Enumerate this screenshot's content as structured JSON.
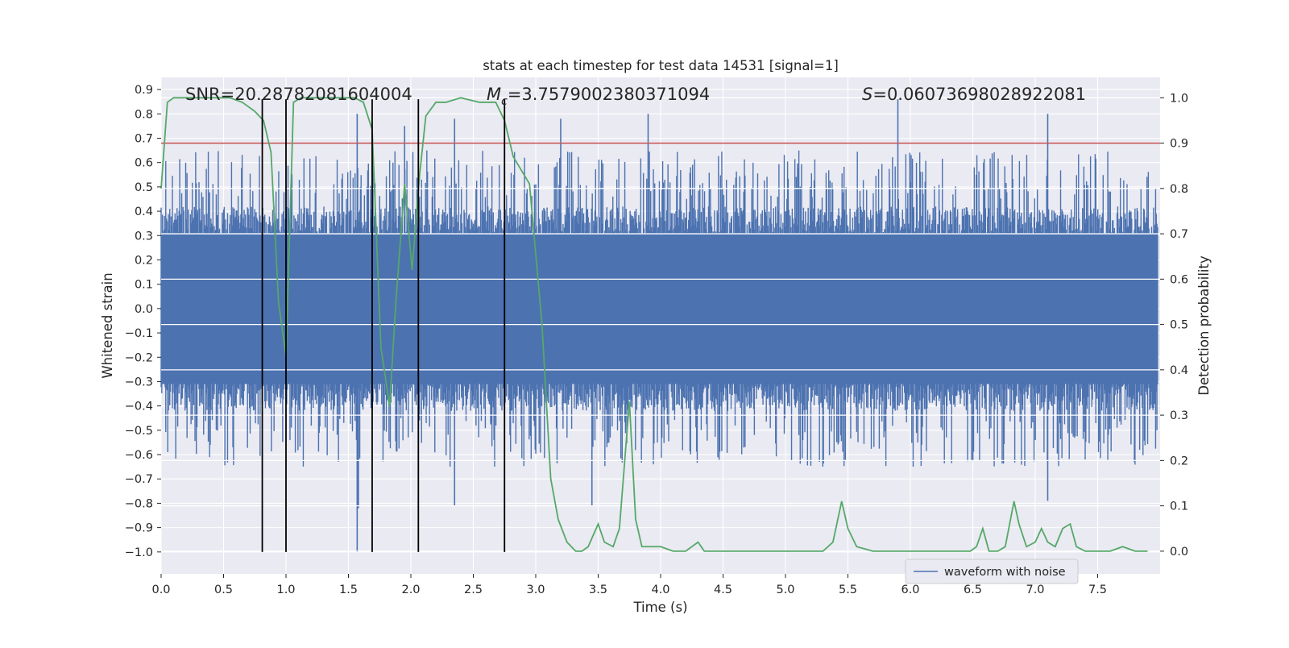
{
  "chart_data": {
    "type": "line",
    "title": "stats at each timestep for test data 14531 [signal=1]",
    "xlabel": "Time (s)",
    "ylabel": "Whitened strain",
    "ylabel_right": "Detection probability",
    "xlim": [
      0.0,
      8.0
    ],
    "ylim": [
      -1.09,
      0.95
    ],
    "ylim_right": [
      -0.05,
      1.045
    ],
    "x_ticks": [
      "0.0",
      "0.5",
      "1.0",
      "1.5",
      "2.0",
      "2.5",
      "3.0",
      "3.5",
      "4.0",
      "4.5",
      "5.0",
      "5.5",
      "6.0",
      "6.5",
      "7.0",
      "7.5"
    ],
    "y_ticks": [
      "0.9",
      "0.8",
      "0.7",
      "0.6",
      "0.5",
      "0.4",
      "0.3",
      "0.2",
      "0.1",
      "0.0",
      "−0.1",
      "−0.2",
      "−0.3",
      "−0.4",
      "−0.5",
      "−0.6",
      "−0.7",
      "−0.8",
      "−0.9",
      "−1.0"
    ],
    "y_ticks_right": [
      "1.0",
      "0.9",
      "0.8",
      "0.7",
      "0.6",
      "0.5",
      "0.4",
      "0.3",
      "0.2",
      "0.1",
      "0.0"
    ],
    "grid": true,
    "legend": {
      "placement": "lower-right",
      "entries": [
        "waveform with noise"
      ]
    },
    "annotations": {
      "snr": "SNR=20.28782081604004",
      "mc_symbol": "M",
      "mc_sub": "c",
      "mc_value": "=3.7579002380371094",
      "s_symbol": "S",
      "s_value": "=0.06073698028922081"
    },
    "threshold_line": {
      "y_right": 0.9,
      "color": "#c44e52"
    },
    "vertical_markers": {
      "x": [
        0.81,
        1.0,
        1.69,
        2.06,
        2.75
      ],
      "y_from": -1.0,
      "y_to": 0.86,
      "color": "#000000"
    },
    "series": [
      {
        "name": "waveform with noise",
        "axis": "left",
        "color": "#4c72b0",
        "description_envelope_typical": [
          -0.45,
          0.45
        ],
        "envelope_peaks_x": [
          1.57,
          1.95,
          2.35,
          3.2,
          3.9,
          5.9,
          7.1
        ],
        "envelope_peaks_y": [
          0.8,
          0.75,
          0.78,
          0.78,
          0.8,
          0.86,
          0.8
        ],
        "envelope_troughs_x": [
          1.57,
          1.58,
          2.35,
          3.45,
          7.1
        ],
        "envelope_troughs_y": [
          -1.0,
          -0.82,
          -0.81,
          -0.81,
          -0.79
        ]
      },
      {
        "name": "detection probability",
        "axis": "right",
        "color": "#55a868",
        "x": [
          0.0,
          0.05,
          0.1,
          0.2,
          0.4,
          0.55,
          0.65,
          0.75,
          0.82,
          0.88,
          0.94,
          1.0,
          1.06,
          1.12,
          1.2,
          1.4,
          1.55,
          1.62,
          1.69,
          1.76,
          1.83,
          1.88,
          1.95,
          2.01,
          2.07,
          2.12,
          2.2,
          2.28,
          2.4,
          2.55,
          2.68,
          2.75,
          2.82,
          2.95,
          3.05,
          3.12,
          3.18,
          3.25,
          3.32,
          3.37,
          3.42,
          3.5,
          3.55,
          3.62,
          3.67,
          3.75,
          3.8,
          3.85,
          3.9,
          4.0,
          4.1,
          4.2,
          4.3,
          4.35,
          4.4,
          4.5,
          4.7,
          5.0,
          5.2,
          5.3,
          5.38,
          5.45,
          5.5,
          5.57,
          5.7,
          6.0,
          6.3,
          6.48,
          6.53,
          6.58,
          6.63,
          6.7,
          6.76,
          6.83,
          6.87,
          6.93,
          7.0,
          7.05,
          7.1,
          7.16,
          7.22,
          7.28,
          7.33,
          7.4,
          7.5,
          7.6,
          7.7,
          7.8,
          7.9
        ],
        "y": [
          0.8,
          0.99,
          1.0,
          1.0,
          1.0,
          1.0,
          0.99,
          0.97,
          0.95,
          0.88,
          0.55,
          0.43,
          0.99,
          1.0,
          1.0,
          1.0,
          1.0,
          0.99,
          0.93,
          0.45,
          0.32,
          0.55,
          0.81,
          0.62,
          0.83,
          0.96,
          0.99,
          0.99,
          1.0,
          0.99,
          0.99,
          0.95,
          0.87,
          0.81,
          0.5,
          0.16,
          0.07,
          0.02,
          0.0,
          0.0,
          0.01,
          0.06,
          0.02,
          0.01,
          0.05,
          0.33,
          0.07,
          0.01,
          0.01,
          0.01,
          0.0,
          0.0,
          0.02,
          0.0,
          0.0,
          0.0,
          0.0,
          0.0,
          0.0,
          0.0,
          0.02,
          0.11,
          0.05,
          0.01,
          0.0,
          0.0,
          0.0,
          0.0,
          0.01,
          0.05,
          0.0,
          0.0,
          0.01,
          0.11,
          0.06,
          0.01,
          0.02,
          0.05,
          0.02,
          0.01,
          0.05,
          0.06,
          0.01,
          0.0,
          0.0,
          0.0,
          0.01,
          0.0,
          0.0
        ]
      }
    ]
  }
}
